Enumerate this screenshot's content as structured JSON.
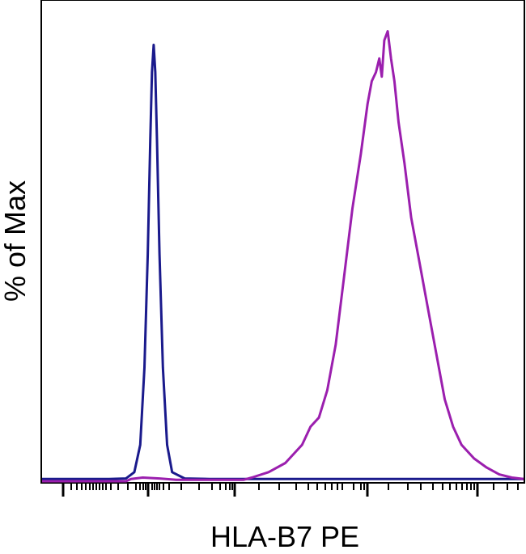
{
  "chart_data": {
    "type": "line",
    "xlabel": "HLA-B7 PE",
    "ylabel": "% of Max",
    "xscale": "log",
    "ylim": [
      0,
      100
    ],
    "grid": false,
    "legend": "none",
    "series": [
      {
        "color": "#1a1a8c",
        "points": [
          [
            0,
            0.5
          ],
          [
            80,
            0.5
          ],
          [
            100,
            0.6
          ],
          [
            110,
            2
          ],
          [
            117,
            8
          ],
          [
            122,
            25
          ],
          [
            126,
            50
          ],
          [
            129,
            75
          ],
          [
            131,
            90
          ],
          [
            133,
            96
          ],
          [
            135,
            90
          ],
          [
            137,
            75
          ],
          [
            140,
            50
          ],
          [
            144,
            25
          ],
          [
            149,
            8
          ],
          [
            155,
            2
          ],
          [
            170,
            0.6
          ],
          [
            200,
            0.5
          ],
          [
            574,
            0.5
          ]
        ]
      },
      {
        "color": "#9b1fae",
        "points": [
          [
            0,
            0
          ],
          [
            100,
            0
          ],
          [
            106,
            0.5
          ],
          [
            120,
            0.8
          ],
          [
            140,
            0.6
          ],
          [
            160,
            0.3
          ],
          [
            240,
            0.3
          ],
          [
            250,
            0.8
          ],
          [
            270,
            2
          ],
          [
            290,
            4
          ],
          [
            310,
            8
          ],
          [
            320,
            12
          ],
          [
            330,
            14
          ],
          [
            340,
            20
          ],
          [
            350,
            30
          ],
          [
            360,
            45
          ],
          [
            370,
            60
          ],
          [
            380,
            72
          ],
          [
            388,
            83
          ],
          [
            393,
            88
          ],
          [
            398,
            90
          ],
          [
            402,
            93
          ],
          [
            405,
            89
          ],
          [
            408,
            97
          ],
          [
            412,
            99
          ],
          [
            416,
            93
          ],
          [
            420,
            88
          ],
          [
            425,
            79
          ],
          [
            432,
            70
          ],
          [
            440,
            58
          ],
          [
            450,
            48
          ],
          [
            460,
            38
          ],
          [
            470,
            28
          ],
          [
            480,
            18
          ],
          [
            490,
            12
          ],
          [
            500,
            8
          ],
          [
            515,
            5
          ],
          [
            530,
            3
          ],
          [
            545,
            1.5
          ],
          [
            560,
            0.8
          ],
          [
            574,
            0.5
          ]
        ]
      }
    ]
  }
}
